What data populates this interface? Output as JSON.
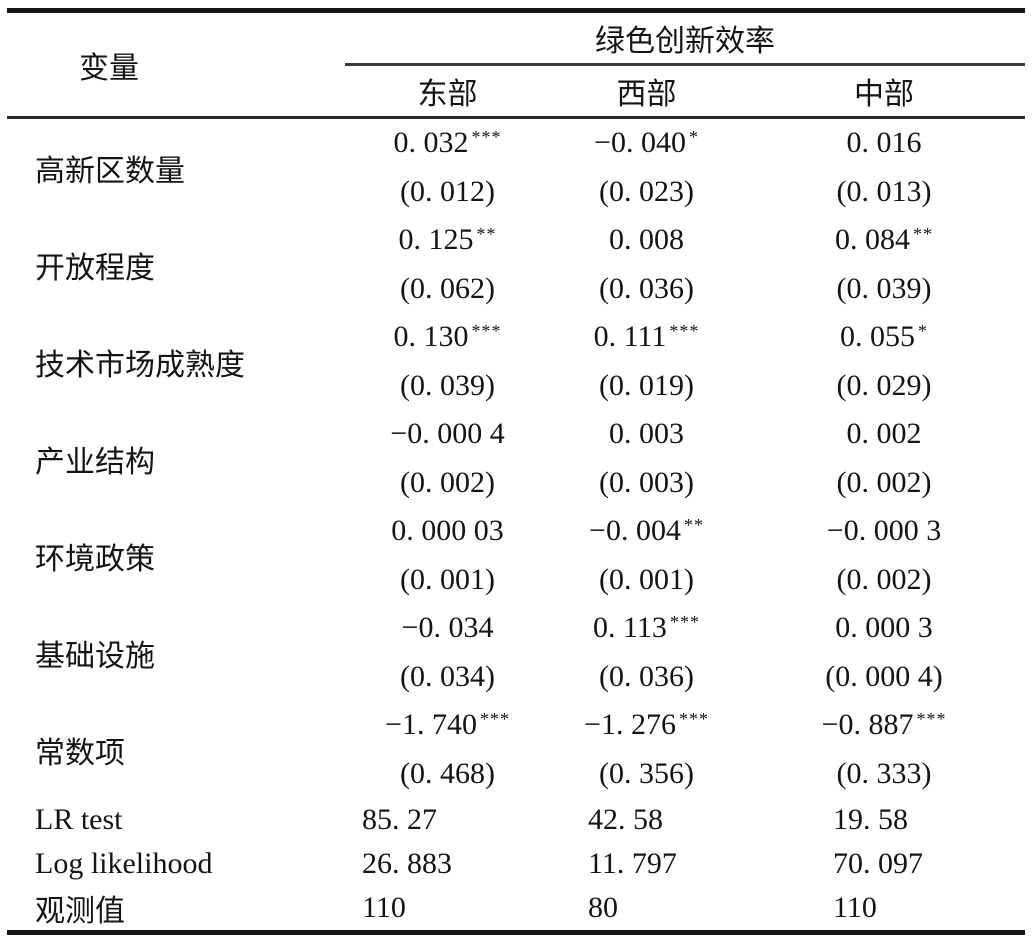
{
  "page": {
    "background": "#ffffff",
    "text_color": "#141414",
    "rule_color": "#161616"
  },
  "table": {
    "header": {
      "variable_col": "变量",
      "group_title": "绿色创新效率",
      "columns": [
        "东部",
        "西部",
        "中部"
      ]
    },
    "coef_rows": [
      {
        "label": "高新区数量",
        "values": [
          {
            "v": "0. 032",
            "stars": "***"
          },
          {
            "v": "−0. 040",
            "stars": "*"
          },
          {
            "v": "0. 016",
            "stars": ""
          }
        ],
        "se": [
          "(0. 012)",
          "(0. 023)",
          "(0. 013)"
        ]
      },
      {
        "label": "开放程度",
        "values": [
          {
            "v": "0. 125",
            "stars": "**"
          },
          {
            "v": "0. 008",
            "stars": ""
          },
          {
            "v": "0. 084",
            "stars": "**"
          }
        ],
        "se": [
          "(0. 062)",
          "(0. 036)",
          "(0. 039)"
        ]
      },
      {
        "label": "技术市场成熟度",
        "values": [
          {
            "v": "0. 130",
            "stars": "***"
          },
          {
            "v": "0. 111",
            "stars": "***"
          },
          {
            "v": "0. 055",
            "stars": "*"
          }
        ],
        "se": [
          "(0. 039)",
          "(0. 019)",
          "(0. 029)"
        ]
      },
      {
        "label": "产业结构",
        "values": [
          {
            "v": "−0. 000 4",
            "stars": ""
          },
          {
            "v": "0. 003",
            "stars": ""
          },
          {
            "v": "0. 002",
            "stars": ""
          }
        ],
        "se": [
          "(0. 002)",
          "(0. 003)",
          "(0. 002)"
        ]
      },
      {
        "label": "环境政策",
        "values": [
          {
            "v": "0. 000 03",
            "stars": ""
          },
          {
            "v": "−0. 004",
            "stars": "**"
          },
          {
            "v": "−0. 000 3",
            "stars": ""
          }
        ],
        "se": [
          "(0. 001)",
          "(0. 001)",
          "(0. 002)"
        ]
      },
      {
        "label": "基础设施",
        "values": [
          {
            "v": "−0. 034",
            "stars": ""
          },
          {
            "v": "0. 113",
            "stars": "***"
          },
          {
            "v": "0. 000 3",
            "stars": ""
          }
        ],
        "se": [
          "(0. 034)",
          "(0. 036)",
          "(0. 000 4)"
        ]
      },
      {
        "label": "常数项",
        "values": [
          {
            "v": "−1. 740",
            "stars": "***"
          },
          {
            "v": "−1. 276",
            "stars": "***"
          },
          {
            "v": "−0. 887",
            "stars": "***"
          }
        ],
        "se": [
          "(0. 468)",
          "(0. 356)",
          "(0. 333)"
        ]
      }
    ],
    "stat_rows": [
      {
        "label": "LR test",
        "values": [
          "85. 27",
          "42. 58",
          "19. 58"
        ]
      },
      {
        "label": "Log likelihood",
        "values": [
          "26. 883",
          "11. 797",
          "70. 097"
        ]
      },
      {
        "label": "观测值",
        "values": [
          "110",
          "80",
          "110"
        ]
      }
    ]
  }
}
